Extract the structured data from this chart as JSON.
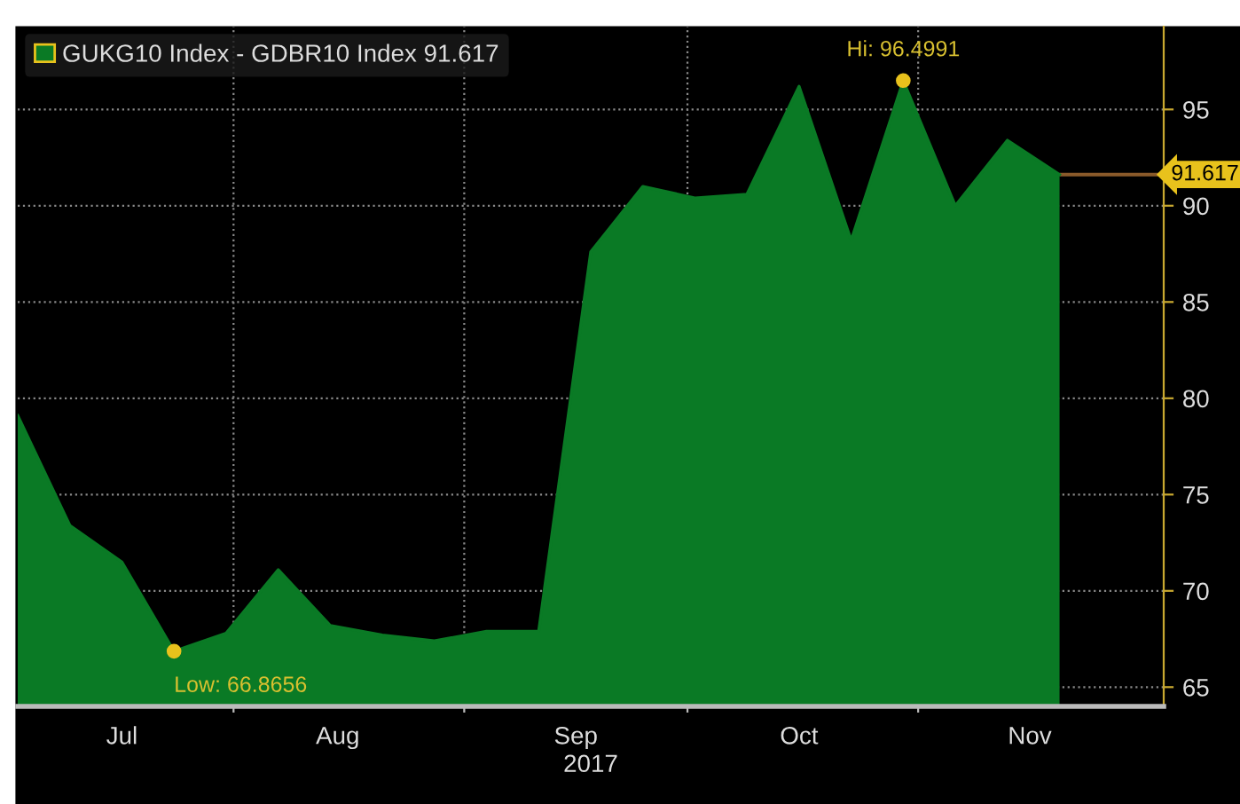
{
  "chart_data": {
    "type": "area",
    "xlabel": "2017",
    "x": [
      "2017-07-03",
      "2017-07-10",
      "2017-07-17",
      "2017-07-24",
      "2017-07-31",
      "2017-08-07",
      "2017-08-14",
      "2017-08-21",
      "2017-08-28",
      "2017-09-04",
      "2017-09-11",
      "2017-09-18",
      "2017-09-25",
      "2017-10-02",
      "2017-10-09",
      "2017-10-16",
      "2017-10-23",
      "2017-10-30",
      "2017-11-06",
      "2017-11-13",
      "2017-11-20"
    ],
    "series": [
      {
        "name": "GUKG10 Index - GDBR10 Index 91.617",
        "color": "#0a7a25",
        "values": [
          79.1,
          73.4,
          71.5,
          66.8656,
          67.8,
          71.1,
          68.2,
          67.7,
          67.4,
          67.9,
          67.9,
          87.6,
          91.0,
          90.4,
          90.6,
          96.2,
          88.2,
          96.4991,
          90.0,
          93.4,
          91.617
        ]
      }
    ],
    "xlim": [
      "2017-07-03",
      "2017-12-04"
    ],
    "xticks": [
      {
        "value": "2017-07-17",
        "label": "Jul"
      },
      {
        "value": "2017-08-01",
        "label": null
      },
      {
        "value": "2017-08-15",
        "label": "Aug"
      },
      {
        "value": "2017-09-01",
        "label": null
      },
      {
        "value": "2017-09-16",
        "label": "Sep"
      },
      {
        "value": "2017-10-01",
        "label": null
      },
      {
        "value": "2017-10-16",
        "label": "Oct"
      },
      {
        "value": "2017-11-01",
        "label": null
      },
      {
        "value": "2017-11-16",
        "label": "Nov"
      }
    ],
    "ylim": [
      64,
      99.3
    ],
    "yticks": [
      65,
      70,
      75,
      80,
      85,
      90,
      95
    ],
    "grid": true,
    "legend": "top left",
    "annotations": [
      {
        "text": "Low: 66.8656",
        "x": "2017-07-24",
        "y": 66.8656
      },
      {
        "text": "Hi: 96.4991",
        "x": "2017-10-30",
        "y": 96.4991
      }
    ],
    "ref_lines": [
      {
        "axis": "y",
        "value": 91.617,
        "label": "91.617",
        "color": "#8a5a2a"
      }
    ]
  }
}
